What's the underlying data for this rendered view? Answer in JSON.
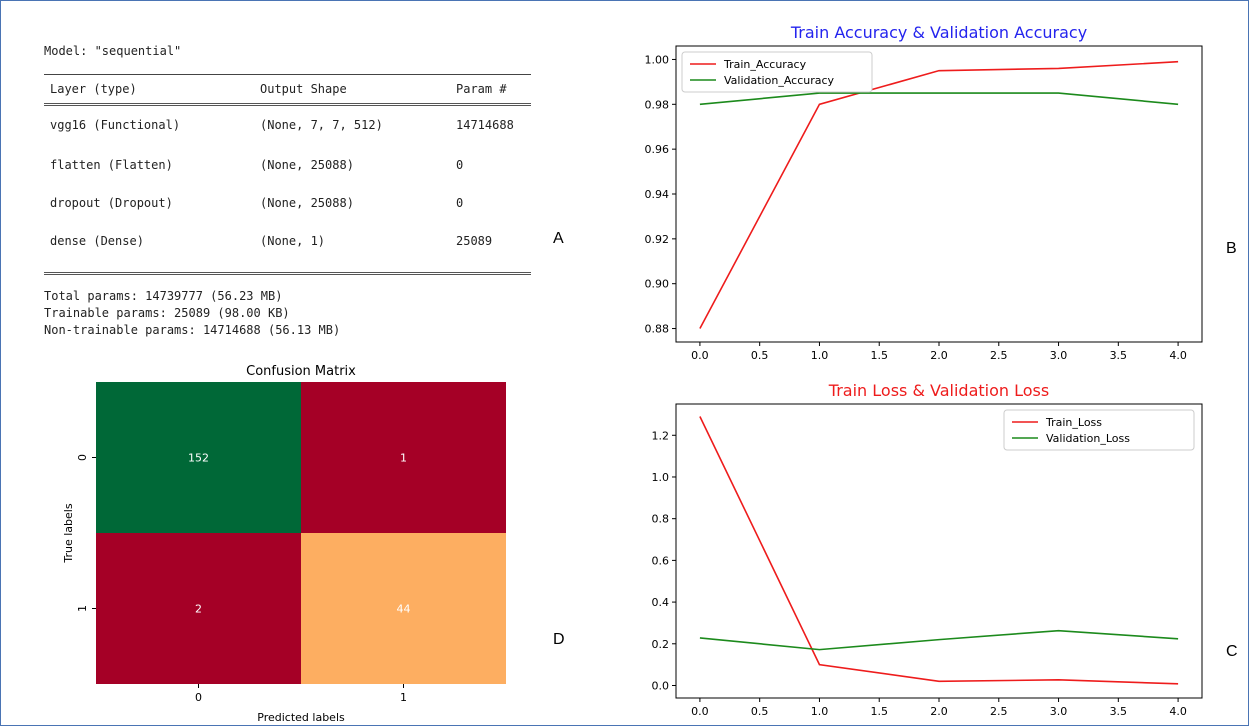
{
  "colors": {
    "frame": "#4a74b4",
    "train": "#ee1c1c",
    "validation": "#1c8a1c",
    "accuracy_title": "#2424ee",
    "loss_title": "#ee1c1c",
    "cm_green": "#006837",
    "cm_red": "#a50026",
    "cm_orange": "#fdae61"
  },
  "panel_labels": {
    "a": "A",
    "b": "B",
    "c": "C",
    "d": "D"
  },
  "model_summary": {
    "title": "Model: \"sequential\"",
    "headers": [
      "Layer (type)",
      "Output Shape",
      "Param #"
    ],
    "rows": [
      [
        "vgg16 (Functional)",
        "(None, 7, 7, 512)",
        "14714688"
      ],
      [
        "flatten (Flatten)",
        "(None, 25088)",
        "0"
      ],
      [
        "dropout (Dropout)",
        "(None, 25088)",
        "0"
      ],
      [
        "dense (Dense)",
        "(None, 1)",
        "25089"
      ]
    ],
    "totals": [
      "Total params: 14739777 (56.23 MB)",
      "Trainable params: 25089 (98.00 KB)",
      "Non-trainable params: 14714688 (56.13 MB)"
    ]
  },
  "chart_data": [
    {
      "type": "line",
      "title": "Train Accuracy & Validation Accuracy",
      "x": [
        0,
        1,
        2,
        3,
        4
      ],
      "series": [
        {
          "name": "Train_Accuracy",
          "values": [
            0.88,
            0.98,
            0.995,
            0.996,
            0.999
          ]
        },
        {
          "name": "Validation_Accuracy",
          "values": [
            0.98,
            0.985,
            0.985,
            0.985,
            0.98
          ]
        }
      ],
      "xlim": [
        -0.2,
        4.2
      ],
      "ylim": [
        0.874,
        1.006
      ],
      "xticks": [
        0,
        0.5,
        1,
        1.5,
        2,
        2.5,
        3,
        3.5,
        4
      ],
      "xtick_labels": [
        "0.0",
        "0.5",
        "1.0",
        "1.5",
        "2.0",
        "2.5",
        "3.0",
        "3.5",
        "4.0"
      ],
      "yticks": [
        0.88,
        0.9,
        0.92,
        0.94,
        0.96,
        0.98,
        1.0
      ],
      "ytick_labels": [
        "0.88",
        "0.90",
        "0.92",
        "0.94",
        "0.96",
        "0.98",
        "1.00"
      ],
      "legend": "top-left",
      "grid": false
    },
    {
      "type": "line",
      "title": "Train Loss & Validation Loss",
      "x": [
        0,
        1,
        2,
        3,
        4
      ],
      "series": [
        {
          "name": "Train_Loss",
          "values": [
            1.29,
            0.1,
            0.02,
            0.027,
            0.008
          ]
        },
        {
          "name": "Validation_Loss",
          "values": [
            0.228,
            0.172,
            0.22,
            0.263,
            0.224
          ]
        }
      ],
      "xlim": [
        -0.2,
        4.2
      ],
      "ylim": [
        -0.06,
        1.35
      ],
      "xticks": [
        0,
        0.5,
        1,
        1.5,
        2,
        2.5,
        3,
        3.5,
        4
      ],
      "xtick_labels": [
        "0.0",
        "0.5",
        "1.0",
        "1.5",
        "2.0",
        "2.5",
        "3.0",
        "3.5",
        "4.0"
      ],
      "yticks": [
        0,
        0.2,
        0.4,
        0.6,
        0.8,
        1.0,
        1.2
      ],
      "ytick_labels": [
        "0.0",
        "0.2",
        "0.4",
        "0.6",
        "0.8",
        "1.0",
        "1.2"
      ],
      "legend": "top-right",
      "grid": false
    },
    {
      "type": "heatmap",
      "title": "Confusion Matrix",
      "xlabel": "Predicted labels",
      "ylabel": "True labels",
      "x_categories": [
        "0",
        "1"
      ],
      "y_categories": [
        "0",
        "1"
      ],
      "values": [
        [
          152,
          1
        ],
        [
          2,
          44
        ]
      ]
    }
  ]
}
